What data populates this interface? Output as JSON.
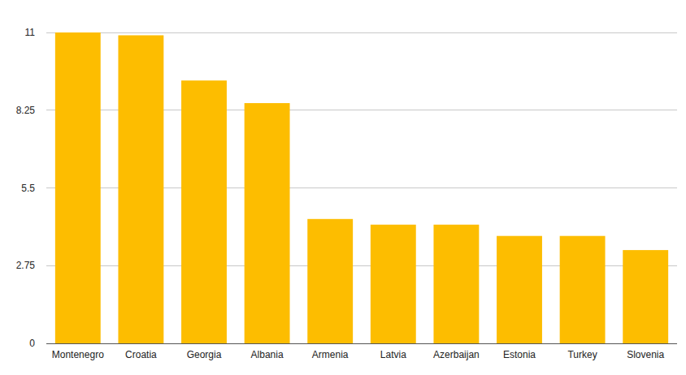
{
  "chart_data": {
    "type": "bar",
    "categories": [
      "Montenegro",
      "Croatia",
      "Georgia",
      "Albania",
      "Armenia",
      "Latvia",
      "Azerbaijan",
      "Estonia",
      "Turkey",
      "Slovenia"
    ],
    "values": [
      11.0,
      10.9,
      9.3,
      8.5,
      4.4,
      4.2,
      4.2,
      3.8,
      3.8,
      3.3
    ],
    "color": "#fdbd00",
    "ylim": [
      0,
      11
    ],
    "yticks": [
      0,
      2.75,
      5.5,
      8.25,
      11
    ],
    "grid": true
  }
}
